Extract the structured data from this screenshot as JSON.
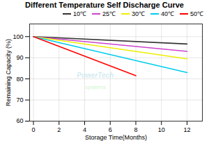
{
  "chart_data": {
    "type": "line",
    "title": "Different Temperature Self Discharge Curve",
    "xlabel": "Storage Time(Months)",
    "ylabel": "Remaining Capacity (%)",
    "annotations": [
      "PowerTech",
      "systems"
    ],
    "xlim": [
      -0.3,
      13.2
    ],
    "ylim": [
      60,
      106
    ],
    "xticks": [
      0,
      2,
      4,
      6,
      8,
      10,
      12
    ],
    "yticks": [
      60,
      70,
      80,
      90,
      100
    ],
    "grid": true,
    "legend": "upper right",
    "series": [
      {
        "name": "10℃",
        "color": "#333333",
        "x": [
          0,
          12
        ],
        "values": [
          100,
          96.5
        ]
      },
      {
        "name": "25℃",
        "color": "#cc44cc",
        "x": [
          0,
          12
        ],
        "values": [
          100,
          93.0
        ]
      },
      {
        "name": "30℃",
        "color": "#eeee00",
        "x": [
          0,
          12
        ],
        "values": [
          100,
          89.5
        ]
      },
      {
        "name": "40℃",
        "color": "#00ccee",
        "x": [
          0,
          12
        ],
        "values": [
          100,
          83.0
        ]
      },
      {
        "name": "50℃",
        "color": "#ff0000",
        "x": [
          0,
          8
        ],
        "values": [
          100,
          81.5
        ]
      }
    ]
  }
}
